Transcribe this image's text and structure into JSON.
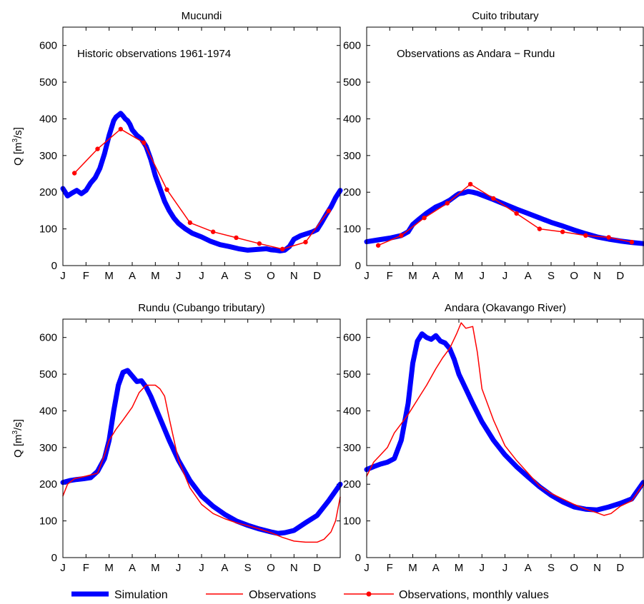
{
  "chart_data": [
    {
      "type": "line",
      "title": "Mucundi",
      "annotation": "Historic observations 1961-1974",
      "ylabel_pre": "Q [m",
      "ylabel_sup": "3",
      "ylabel_post": "/s]",
      "xticks": [
        "J",
        "F",
        "M",
        "A",
        "M",
        "J",
        "J",
        "A",
        "S",
        "O",
        "N",
        "D"
      ],
      "yticks": [
        "0",
        "100",
        "200",
        "300",
        "400",
        "500",
        "600"
      ],
      "ylim": [
        0,
        650
      ],
      "series": [
        {
          "name": "Simulation",
          "color": "#0000ff",
          "x": [
            0.0,
            0.2,
            0.4,
            0.6,
            0.8,
            1.0,
            1.2,
            1.4,
            1.6,
            1.8,
            2.0,
            2.1,
            2.2,
            2.3,
            2.4,
            2.5,
            2.6,
            2.7,
            2.8,
            2.9,
            3.0,
            3.2,
            3.4,
            3.6,
            3.8,
            4.0,
            4.2,
            4.4,
            4.6,
            4.8,
            5.0,
            5.3,
            5.6,
            6.0,
            6.4,
            6.8,
            7.2,
            7.6,
            8.0,
            8.4,
            8.8,
            9.0,
            9.2,
            9.4,
            9.6,
            9.8,
            10.0,
            10.3,
            10.6,
            10.8,
            11.0,
            11.2,
            11.4,
            11.6,
            11.8,
            12.0
          ],
          "y": [
            210,
            190,
            198,
            205,
            196,
            205,
            225,
            240,
            265,
            305,
            355,
            375,
            395,
            405,
            410,
            415,
            408,
            400,
            395,
            385,
            370,
            355,
            345,
            325,
            290,
            245,
            210,
            175,
            150,
            130,
            115,
            100,
            88,
            78,
            66,
            57,
            52,
            46,
            42,
            44,
            46,
            43,
            42,
            40,
            42,
            52,
            72,
            82,
            88,
            92,
            98,
            118,
            140,
            160,
            185,
            205
          ]
        },
        {
          "name": "Observations, monthly values",
          "color": "#ff0000",
          "x": [
            0.5,
            1.5,
            2.5,
            3.5,
            4.5,
            5.5,
            6.5,
            7.5,
            8.5,
            9.5,
            10.5,
            11.5
          ],
          "y": [
            252,
            318,
            372,
            335,
            207,
            117,
            92,
            76,
            60,
            45,
            64,
            149
          ]
        }
      ]
    },
    {
      "type": "line",
      "title": "Cuito tributary",
      "annotation": "Observations as Andara − Rundu",
      "xticks": [
        "J",
        "F",
        "M",
        "A",
        "M",
        "J",
        "J",
        "A",
        "S",
        "O",
        "N",
        "D"
      ],
      "yticks": [
        "0",
        "100",
        "200",
        "300",
        "400",
        "500",
        "600"
      ],
      "ylim": [
        0,
        650
      ],
      "series": [
        {
          "name": "Simulation",
          "color": "#0000ff",
          "x": [
            0.0,
            0.5,
            1.0,
            1.5,
            1.8,
            2.0,
            2.3,
            2.6,
            3.0,
            3.3,
            3.6,
            3.9,
            4.0,
            4.2,
            4.4,
            4.6,
            4.8,
            5.0,
            5.5,
            6.0,
            6.5,
            7.0,
            7.5,
            8.0,
            8.5,
            9.0,
            9.5,
            10.0,
            10.5,
            11.0,
            11.5,
            12.0
          ],
          "y": [
            65,
            70,
            75,
            82,
            92,
            112,
            128,
            143,
            160,
            168,
            178,
            192,
            196,
            198,
            202,
            200,
            197,
            192,
            180,
            167,
            154,
            142,
            130,
            118,
            108,
            97,
            87,
            78,
            72,
            67,
            63,
            60
          ]
        },
        {
          "name": "Observations, monthly values",
          "color": "#ff0000",
          "x": [
            0.5,
            1.5,
            2.5,
            3.5,
            4.5,
            5.5,
            6.5,
            7.5,
            8.5,
            9.5,
            10.5,
            11.5
          ],
          "y": [
            55,
            82,
            130,
            170,
            222,
            183,
            142,
            100,
            92,
            82,
            77,
            64
          ]
        }
      ]
    },
    {
      "type": "line",
      "title": "Rundu (Cubango tributary)",
      "ylabel_pre": "Q [m",
      "ylabel_sup": "3",
      "ylabel_post": "/s]",
      "xticks": [
        "J",
        "F",
        "M",
        "A",
        "M",
        "J",
        "J",
        "A",
        "S",
        "O",
        "N",
        "D"
      ],
      "yticks": [
        "0",
        "100",
        "200",
        "300",
        "400",
        "500",
        "600"
      ],
      "ylim": [
        0,
        650
      ],
      "series": [
        {
          "name": "Simulation",
          "color": "#0000ff",
          "x": [
            0.0,
            0.3,
            0.6,
            0.9,
            1.2,
            1.5,
            1.8,
            2.0,
            2.2,
            2.4,
            2.6,
            2.8,
            3.0,
            3.2,
            3.4,
            3.6,
            3.8,
            4.0,
            4.3,
            4.6,
            5.0,
            5.5,
            6.0,
            6.5,
            7.0,
            7.5,
            8.0,
            8.5,
            9.0,
            9.3,
            9.6,
            10.0,
            10.5,
            11.0,
            11.5,
            12.0
          ],
          "y": [
            205,
            210,
            213,
            215,
            218,
            235,
            270,
            320,
            400,
            470,
            505,
            510,
            495,
            480,
            482,
            465,
            440,
            410,
            365,
            320,
            265,
            210,
            168,
            140,
            118,
            100,
            88,
            78,
            70,
            66,
            68,
            74,
            95,
            115,
            155,
            200
          ]
        },
        {
          "name": "Observations",
          "color": "#ff0000",
          "x": [
            0.0,
            0.2,
            0.5,
            1.0,
            1.5,
            1.8,
            2.0,
            2.3,
            2.6,
            3.0,
            3.3,
            3.6,
            4.0,
            4.2,
            4.4,
            4.6,
            5.0,
            5.5,
            6.0,
            6.5,
            7.0,
            7.5,
            8.0,
            8.5,
            9.0,
            9.5,
            10.0,
            10.5,
            11.0,
            11.3,
            11.6,
            11.8,
            12.0
          ],
          "y": [
            168,
            200,
            215,
            222,
            230,
            280,
            320,
            350,
            375,
            410,
            450,
            470,
            470,
            460,
            440,
            380,
            265,
            190,
            145,
            120,
            106,
            95,
            87,
            78,
            68,
            55,
            45,
            42,
            42,
            50,
            70,
            100,
            165
          ]
        }
      ]
    },
    {
      "type": "line",
      "title": "Andara (Okavango River)",
      "xticks": [
        "J",
        "F",
        "M",
        "A",
        "M",
        "J",
        "J",
        "A",
        "S",
        "O",
        "N",
        "D"
      ],
      "yticks": [
        "0",
        "100",
        "200",
        "300",
        "400",
        "500",
        "600"
      ],
      "ylim": [
        0,
        650
      ],
      "series": [
        {
          "name": "Simulation",
          "color": "#0000ff",
          "x": [
            0.0,
            0.3,
            0.6,
            0.9,
            1.2,
            1.5,
            1.8,
            2.0,
            2.2,
            2.4,
            2.6,
            2.8,
            3.0,
            3.2,
            3.4,
            3.6,
            3.8,
            4.0,
            4.3,
            4.6,
            5.0,
            5.5,
            6.0,
            6.5,
            7.0,
            7.5,
            8.0,
            8.5,
            9.0,
            9.5,
            10.0,
            10.5,
            11.0,
            11.5,
            12.0
          ],
          "y": [
            240,
            248,
            255,
            260,
            270,
            320,
            420,
            530,
            590,
            610,
            600,
            595,
            605,
            590,
            585,
            570,
            540,
            500,
            460,
            420,
            370,
            320,
            280,
            248,
            220,
            193,
            170,
            152,
            138,
            132,
            130,
            138,
            148,
            160,
            205
          ]
        },
        {
          "name": "Observations",
          "color": "#ff0000",
          "x": [
            0.0,
            0.3,
            0.6,
            0.9,
            1.2,
            1.5,
            1.8,
            2.0,
            2.3,
            2.6,
            3.0,
            3.3,
            3.6,
            3.9,
            4.1,
            4.3,
            4.6,
            4.8,
            5.0,
            5.5,
            6.0,
            6.5,
            7.0,
            7.5,
            8.0,
            8.5,
            9.0,
            9.5,
            10.0,
            10.3,
            10.6,
            11.0,
            11.5,
            12.0
          ],
          "y": [
            222,
            260,
            280,
            300,
            340,
            365,
            390,
            410,
            440,
            470,
            515,
            545,
            570,
            610,
            640,
            625,
            630,
            560,
            460,
            375,
            305,
            265,
            230,
            195,
            175,
            160,
            145,
            132,
            122,
            115,
            120,
            140,
            155,
            200
          ]
        }
      ]
    }
  ],
  "legend": {
    "items": [
      {
        "label": "Simulation",
        "color": "#0000ff",
        "style": "thick"
      },
      {
        "label": "Observations",
        "color": "#ff0000",
        "style": "thin"
      },
      {
        "label": "Observations, monthly values",
        "color": "#ff0000",
        "style": "thin-dots"
      }
    ]
  }
}
